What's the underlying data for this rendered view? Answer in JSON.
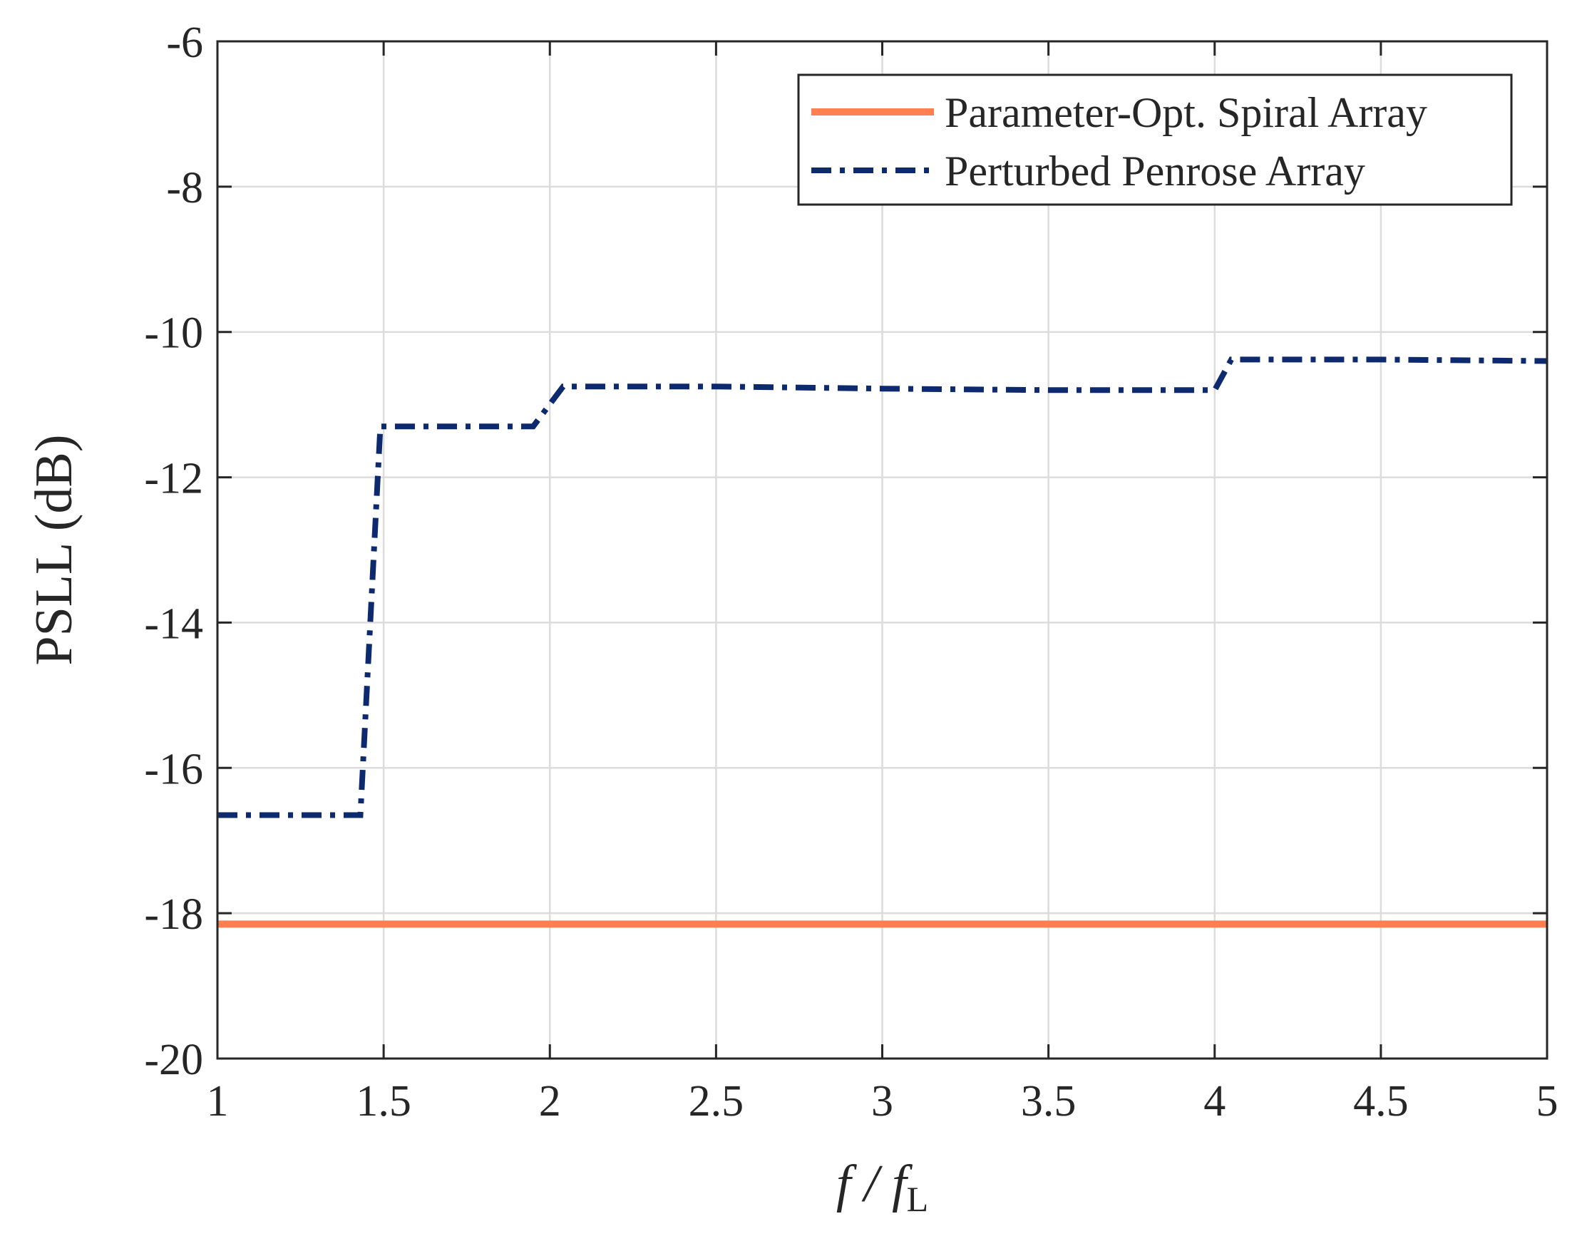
{
  "chart_data": {
    "type": "line",
    "title": "",
    "xlabel": {
      "main": "f / f",
      "sub": "L"
    },
    "ylabel": "PSLL (dB)",
    "xlim": [
      1,
      5
    ],
    "ylim": [
      -20,
      -6
    ],
    "xticks": [
      1,
      1.5,
      2,
      2.5,
      3,
      3.5,
      4,
      4.5,
      5
    ],
    "xtick_labels": [
      "1",
      "1.5",
      "2",
      "2.5",
      "3",
      "3.5",
      "4",
      "4.5",
      "5"
    ],
    "yticks": [
      -20,
      -18,
      -16,
      -14,
      -12,
      -10,
      -8,
      -6
    ],
    "ytick_labels": [
      "-20",
      "-18",
      "-16",
      "-14",
      "-12",
      "-10",
      "-8",
      "-6"
    ],
    "grid": true,
    "legend_position": "top-right",
    "series": [
      {
        "name": "Parameter-Opt. Spiral Array",
        "color": "#FF7F50",
        "style": "solid",
        "x": [
          1,
          5
        ],
        "y": [
          -18.15,
          -18.15
        ]
      },
      {
        "name": "Perturbed Penrose Array",
        "color": "#0E2A6E",
        "style": "dashdot",
        "x": [
          1,
          1.43,
          1.49,
          1.95,
          2.04,
          2.5,
          3,
          3.5,
          4.0,
          4.05,
          4.5,
          5
        ],
        "y": [
          -16.65,
          -16.65,
          -11.3,
          -11.3,
          -10.75,
          -10.75,
          -10.78,
          -10.8,
          -10.8,
          -10.38,
          -10.38,
          -10.4
        ]
      }
    ]
  }
}
